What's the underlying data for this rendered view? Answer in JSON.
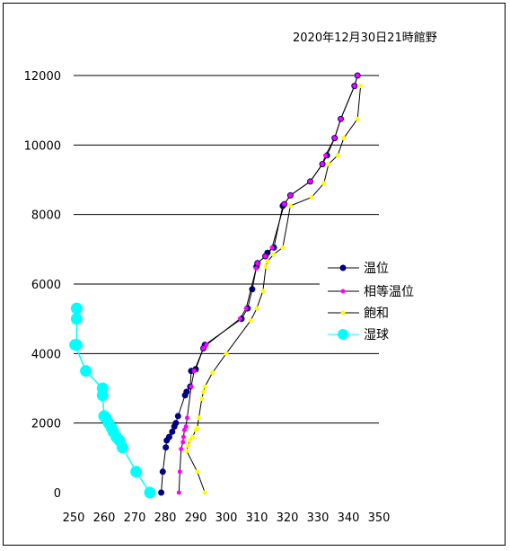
{
  "chart_data": {
    "type": "line",
    "title": "2020年12月30日21時館野",
    "xlim": [
      250,
      350
    ],
    "ylim": [
      0,
      12000
    ],
    "x_ticks": [
      "250",
      "260",
      "270",
      "280",
      "290",
      "300",
      "310",
      "320",
      "330",
      "340",
      "350"
    ],
    "y_ticks": [
      "0",
      "2000",
      "4000",
      "6000",
      "8000",
      "10000",
      "12000"
    ],
    "grid": "horizontal",
    "legend_position": "right",
    "series": [
      {
        "name": "温位",
        "color": "#000080",
        "marker": "circle",
        "line": "#000000",
        "x": [
          278.7,
          279.2,
          280.2,
          280.5,
          281.3,
          282.3,
          283.0,
          283.5,
          284.2,
          286.5,
          287.0,
          288.2,
          288.5,
          290.0,
          292.5,
          293.0,
          305.0,
          307.0,
          308.5,
          309.9,
          310.2,
          312.8,
          313.5,
          315.6,
          318.5,
          319.0,
          321.0,
          327.5,
          331.5,
          333.0,
          335.5,
          337.5,
          342.0,
          343.0
        ],
        "y": [
          0,
          600,
          1300,
          1500,
          1600,
          1750,
          1900,
          2000,
          2200,
          2800,
          2900,
          3050,
          3500,
          3550,
          4150,
          4250,
          5000,
          5300,
          5850,
          6500,
          6600,
          6800,
          6900,
          7050,
          8250,
          8300,
          8550,
          8950,
          9450,
          9700,
          10200,
          10750,
          11700,
          12000
        ]
      },
      {
        "name": "相等温位",
        "color": "#ff00ff",
        "marker": "circle",
        "line": "#000000",
        "x": [
          284.5,
          284.8,
          285.2,
          285.8,
          286.0,
          286.3,
          286.8,
          287.2,
          288.5,
          289.5,
          292.5,
          293.5,
          304.5,
          306.5,
          309.8,
          310.2,
          312.8,
          315.0,
          319.0,
          321.0,
          327.5,
          331.5,
          332.5,
          335.5,
          337.5,
          342.0,
          343.0
        ],
        "y": [
          0,
          600,
          1250,
          1450,
          1600,
          1800,
          1900,
          2150,
          3050,
          3500,
          4150,
          4250,
          5000,
          5300,
          6450,
          6600,
          6800,
          7050,
          8300,
          8550,
          8950,
          9450,
          9700,
          10200,
          10750,
          11700,
          12000
        ]
      },
      {
        "name": "飽和",
        "color": "#ffff00",
        "marker": "circle",
        "line": "#000000",
        "x": [
          293.0,
          290.5,
          287.0,
          287.5,
          288.0,
          289.0,
          290.0,
          290.5,
          291.0,
          292.0,
          292.5,
          293.0,
          295.5,
          300.0,
          308.0,
          310.0,
          312.0,
          313.0,
          313.5,
          315.5,
          318.5,
          321.0,
          328.0,
          332.0,
          333.5,
          336.5,
          338.5,
          343.0,
          344.0
        ],
        "y": [
          0,
          600,
          1200,
          1350,
          1500,
          1600,
          1800,
          1850,
          2150,
          2700,
          2900,
          3050,
          3450,
          4000,
          4950,
          5300,
          5800,
          6500,
          6650,
          6850,
          7050,
          8250,
          8500,
          8900,
          9450,
          9700,
          10200,
          10750,
          11700
        ]
      },
      {
        "name": "湿球",
        "color": "#00ffff",
        "marker": "circle",
        "line": "#00ffff",
        "x": [
          275.0,
          270.5,
          266.0,
          265.0,
          264.0,
          263.0,
          262.5,
          261.5,
          260.5,
          260.0,
          259.5,
          259.5,
          254.0,
          250.5,
          251.0,
          251.0,
          251.0
        ],
        "y": [
          0,
          600,
          1300,
          1500,
          1600,
          1750,
          1850,
          2000,
          2150,
          2200,
          2800,
          3000,
          3500,
          4250,
          4250,
          5000,
          5300
        ]
      }
    ]
  }
}
